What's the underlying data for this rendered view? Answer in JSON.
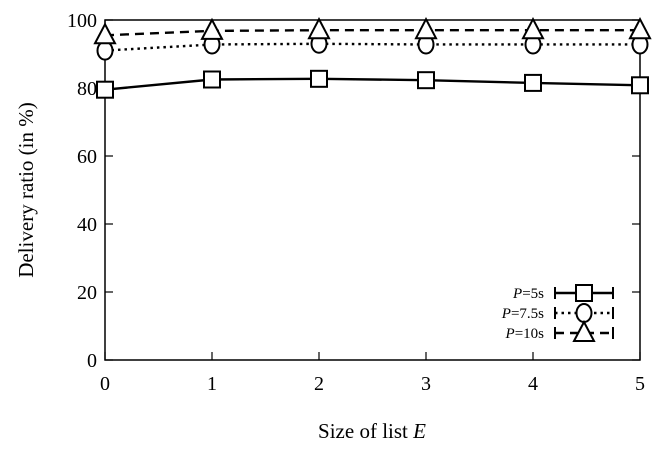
{
  "chart_data": {
    "type": "line",
    "title": "",
    "xlabel": "Size of list",
    "xlabel_var": "E",
    "ylabel": "Delivery ratio (in %)",
    "x": [
      0,
      1,
      2,
      3,
      4,
      5
    ],
    "xlim": [
      0,
      5
    ],
    "ylim": [
      0,
      100
    ],
    "xticks": [
      "0",
      "1",
      "2",
      "3",
      "4",
      "5"
    ],
    "yticks": [
      "0",
      "20",
      "40",
      "60",
      "80",
      "100"
    ],
    "grid": false,
    "legend_position": "bottom-right",
    "series": [
      {
        "name": "=5s",
        "name_var": "P",
        "marker": "square",
        "line": "solid",
        "color": "#000000",
        "values": [
          79.5,
          82.5,
          82.7,
          82.3,
          81.5,
          80.8
        ]
      },
      {
        "name": "=7.5s",
        "name_var": "P",
        "marker": "circle",
        "line": "dotted",
        "color": "#000000",
        "values": [
          91.0,
          92.8,
          93.0,
          92.8,
          92.8,
          92.8
        ]
      },
      {
        "name": "=10s",
        "name_var": "P",
        "marker": "triangle",
        "line": "dashed",
        "color": "#000000",
        "values": [
          95.5,
          96.8,
          97.0,
          97.0,
          97.0,
          97.0
        ]
      }
    ]
  }
}
